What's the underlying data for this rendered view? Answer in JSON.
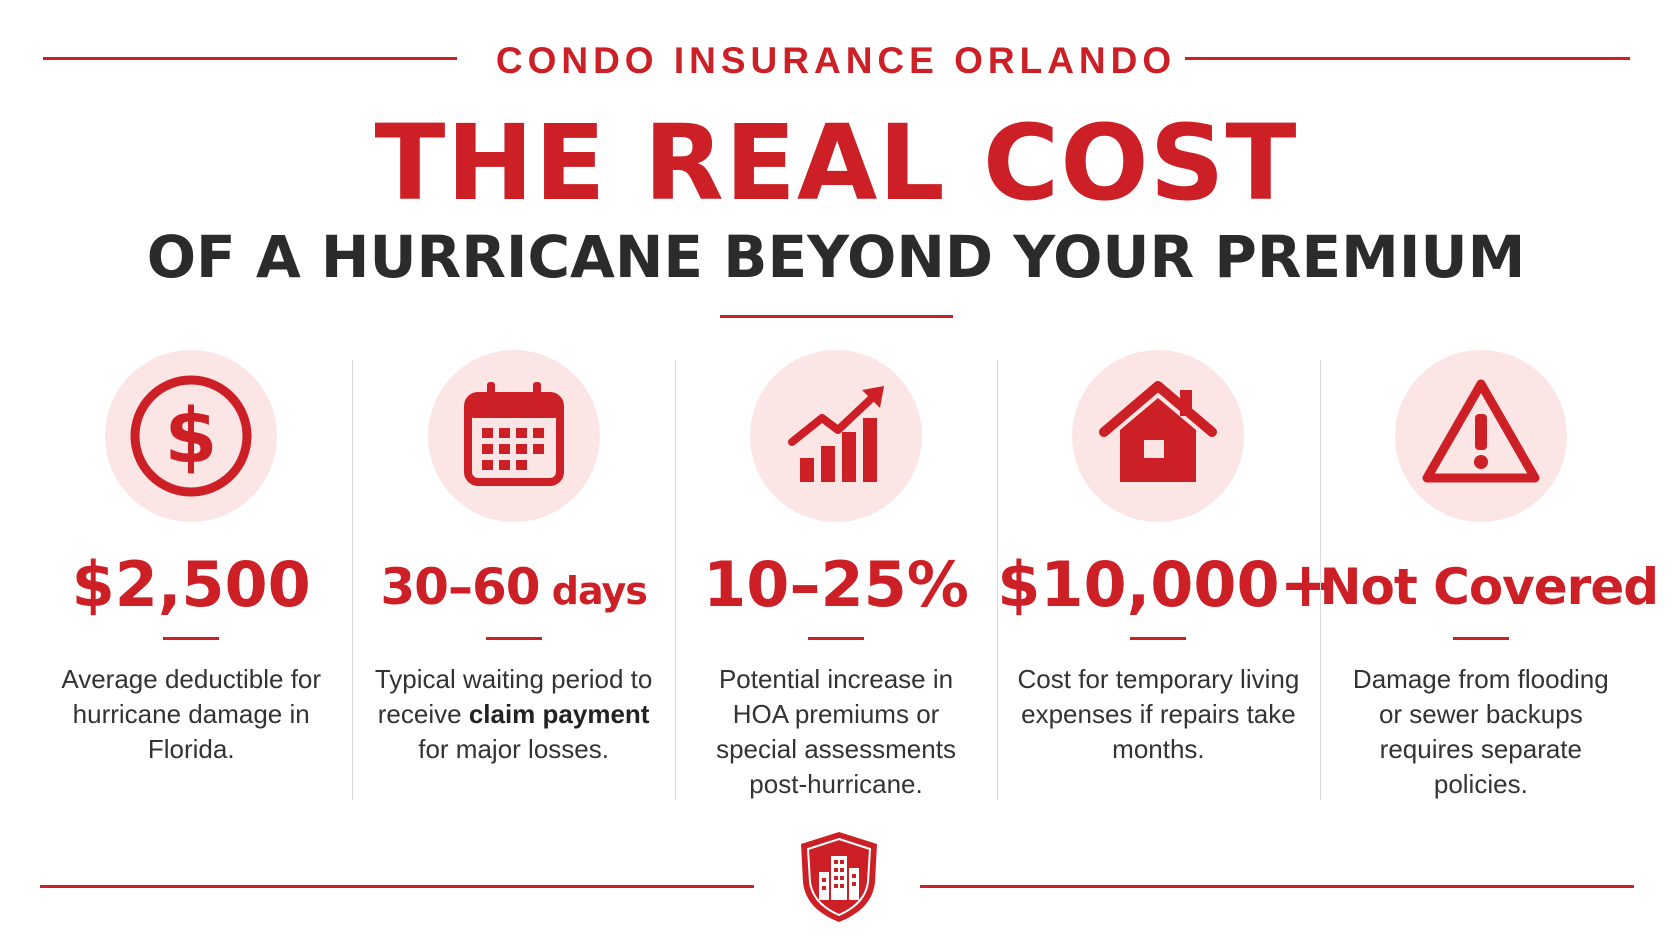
{
  "header": {
    "eyebrow": "CONDO INSURANCE ORLANDO",
    "headline": "THE REAL COST",
    "subheadline": "OF A HURRICANE BEYOND YOUR PREMIUM"
  },
  "colors": {
    "accent": "#cc1f26",
    "icon_bg": "#fbe5e5",
    "text": "#2b2b2b"
  },
  "stats": [
    {
      "icon": "dollar-circle-icon",
      "value": "$2,500",
      "desc_pre": "Average deductible for hurricane damage in Florida.",
      "desc_bold": "",
      "desc_post": ""
    },
    {
      "icon": "calendar-icon",
      "value": "30–60",
      "unit": " days",
      "desc_pre": "Typical waiting period to receive ",
      "desc_bold": "claim payment",
      "desc_post": " for major losses."
    },
    {
      "icon": "rising-chart-icon",
      "value": "10–25%",
      "desc_pre": "Potential increase in HOA premiums or special assessments post-hurricane.",
      "desc_bold": "",
      "desc_post": ""
    },
    {
      "icon": "house-icon",
      "value": "$10,000+",
      "desc_pre": "Cost for temporary living expenses if repairs take months.",
      "desc_bold": "",
      "desc_post": ""
    },
    {
      "icon": "warning-triangle-icon",
      "value": "Not Covered",
      "desc_pre": "Damage from flooding or sewer backups requires separate policies.",
      "desc_bold": "",
      "desc_post": ""
    }
  ],
  "footer": {
    "logo": "shield-building-logo"
  }
}
